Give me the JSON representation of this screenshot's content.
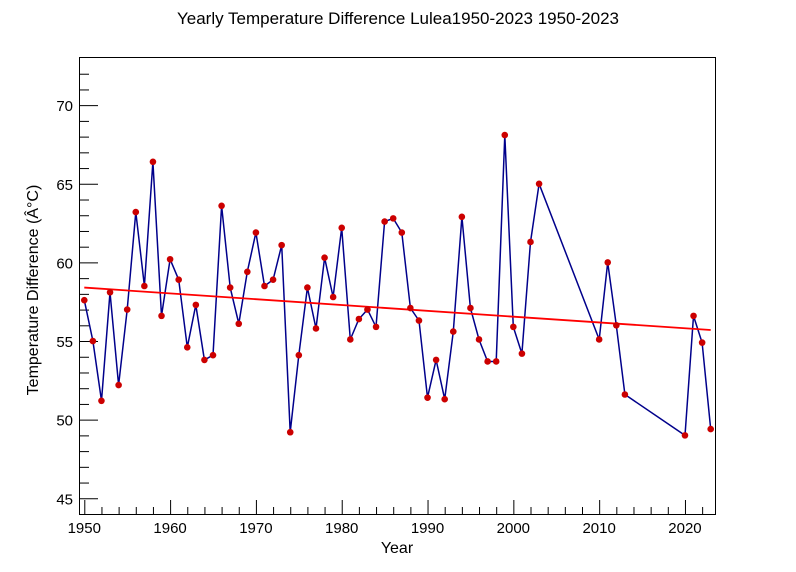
{
  "chart_data": {
    "type": "line",
    "title": "Yearly Temperature Difference Lulea1950-2023 1950-2023",
    "xlabel": "Year",
    "ylabel": "Temperature Difference (Â°C)",
    "xlim": [
      1949.5,
      2023.5
    ],
    "ylim": [
      44,
      73
    ],
    "xticks": [
      1950,
      1960,
      1970,
      1980,
      1990,
      2000,
      2010,
      2020
    ],
    "yticks": [
      45,
      50,
      55,
      60,
      65,
      70
    ],
    "grid": false,
    "series": [
      {
        "type": "line+markers",
        "line_color": "#00008b",
        "marker_color": "#cc0000",
        "x": [
          1950,
          1951,
          1952,
          1953,
          1954,
          1955,
          1956,
          1957,
          1958,
          1959,
          1960,
          1961,
          1962,
          1963,
          1964,
          1965,
          1966,
          1967,
          1968,
          1969,
          1970,
          1971,
          1972,
          1973,
          1974,
          1975,
          1976,
          1977,
          1978,
          1979,
          1980,
          1981,
          1982,
          1983,
          1984,
          1985,
          1986,
          1987,
          1988,
          1989,
          1990,
          1991,
          1992,
          1993,
          1994,
          1995,
          1996,
          1997,
          1998,
          1999,
          2000,
          2001,
          2002,
          2003,
          2010,
          2011,
          2012,
          2013,
          2020,
          2021,
          2022,
          2023
        ],
        "y": [
          57.6,
          55.0,
          51.2,
          58.1,
          52.2,
          57.0,
          63.2,
          58.5,
          66.4,
          56.6,
          60.2,
          58.9,
          54.6,
          57.3,
          53.8,
          54.1,
          63.6,
          58.4,
          56.1,
          59.4,
          61.9,
          58.5,
          58.9,
          61.1,
          49.2,
          54.1,
          58.4,
          55.8,
          60.3,
          57.8,
          62.2,
          55.1,
          56.4,
          57.0,
          55.9,
          62.6,
          62.8,
          61.9,
          57.1,
          56.3,
          51.4,
          53.8,
          51.3,
          55.6,
          62.9,
          57.1,
          55.1,
          53.7,
          53.7,
          68.1,
          55.9,
          54.2,
          61.3,
          65.0,
          55.1,
          60.0,
          56.0,
          51.6,
          49.0,
          56.6,
          54.9,
          49.4
        ]
      },
      {
        "type": "trend",
        "color": "#ff0000",
        "x": [
          1950,
          2023
        ],
        "y": [
          58.4,
          55.7
        ]
      }
    ]
  }
}
